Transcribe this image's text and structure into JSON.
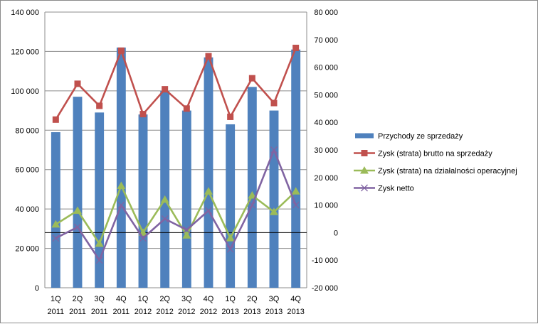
{
  "chart_data": {
    "type": "bar+line",
    "categories": [
      [
        "1Q",
        "2011"
      ],
      [
        "2Q",
        "2011"
      ],
      [
        "3Q",
        "2011"
      ],
      [
        "4Q",
        "2011"
      ],
      [
        "1Q",
        "2012"
      ],
      [
        "2Q",
        "2012"
      ],
      [
        "3Q",
        "2012"
      ],
      [
        "4Q",
        "2012"
      ],
      [
        "1Q",
        "2013"
      ],
      [
        "2Q",
        "2013"
      ],
      [
        "3Q",
        "2013"
      ],
      [
        "4Q",
        "2013"
      ]
    ],
    "y_left": {
      "range": [
        0,
        140000
      ],
      "tick_values": [
        0,
        20000,
        40000,
        60000,
        80000,
        100000,
        120000,
        140000
      ],
      "tick_labels": [
        "0",
        "20 000",
        "40 000",
        "60 000",
        "80 000",
        "100 000",
        "120 000",
        "140 000"
      ]
    },
    "y_right": {
      "range": [
        -20000,
        80000
      ],
      "tick_values": [
        -20000,
        -10000,
        0,
        10000,
        20000,
        30000,
        40000,
        50000,
        60000,
        70000,
        80000
      ],
      "tick_labels": [
        "-20 000",
        "-10 000",
        "0",
        "10 000",
        "20 000",
        "30 000",
        "40 000",
        "50 000",
        "60 000",
        "70 000",
        "80 000"
      ]
    },
    "series": [
      {
        "name": "Przychody ze sprzedaży",
        "kind": "bar",
        "axis": "left",
        "color": "#4f81bd",
        "values": [
          79000,
          97000,
          89000,
          122000,
          88000,
          100000,
          90000,
          117000,
          83000,
          102000,
          90000,
          121000
        ]
      },
      {
        "name": "Zysk (strata) brutto na sprzedaży",
        "kind": "line",
        "marker": "square",
        "axis": "right",
        "color": "#c0504d",
        "values": [
          41000,
          54000,
          46000,
          66000,
          43000,
          52000,
          45000,
          64000,
          42000,
          56000,
          47000,
          67000
        ]
      },
      {
        "name": "Zysk (strata) na działalności operacyjnej",
        "kind": "line",
        "marker": "triangle",
        "axis": "right",
        "color": "#9bbb59",
        "values": [
          3000,
          8000,
          -4000,
          17000,
          0,
          12000,
          -1000,
          15000,
          -2000,
          13500,
          7500,
          15000
        ]
      },
      {
        "name": "Zysk netto",
        "kind": "line",
        "marker": "x",
        "axis": "right",
        "color": "#8064a2",
        "values": [
          -2000,
          2000,
          -10000,
          10000,
          -2000,
          5000,
          1000,
          8000,
          -6000,
          10000,
          30000,
          10000
        ]
      }
    ],
    "grid": true,
    "legend_position": "right"
  }
}
